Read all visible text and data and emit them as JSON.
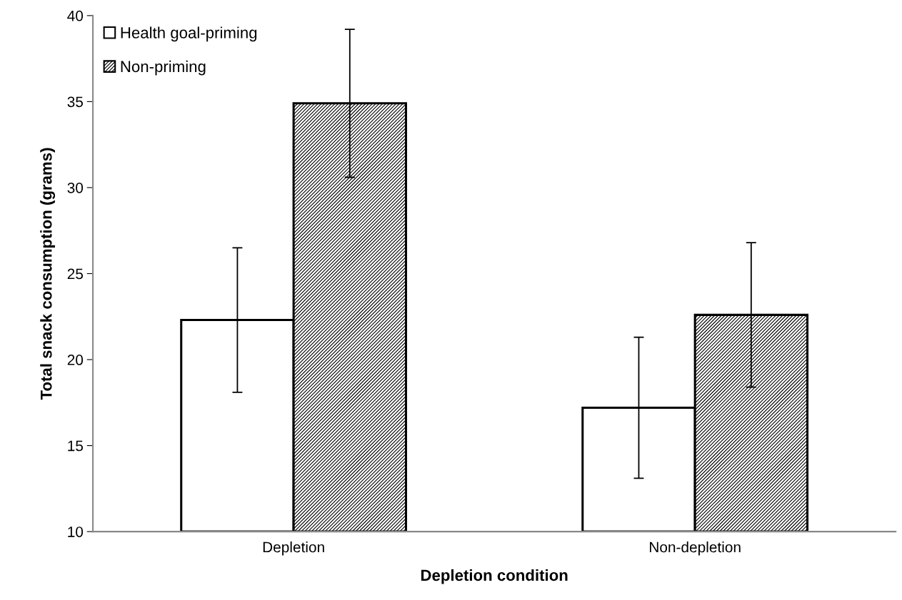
{
  "chart_data": {
    "type": "bar",
    "xlabel": "Depletion condition",
    "ylabel": "Total snack consumption (grams)",
    "categories": [
      "Depletion",
      "Non-depletion"
    ],
    "series": [
      {
        "name": "Health goal-priming",
        "color": "#ffffff",
        "values": [
          22.3,
          17.2
        ],
        "errors": [
          4.2,
          4.1
        ]
      },
      {
        "name": "Non-priming",
        "color": "#000000",
        "values": [
          34.9,
          22.6
        ],
        "errors": [
          4.3,
          4.2
        ]
      }
    ],
    "ylim": [
      10,
      40
    ],
    "yticks": [
      10,
      15,
      20,
      25,
      30,
      35,
      40
    ],
    "grid": false,
    "legend": "top left"
  }
}
